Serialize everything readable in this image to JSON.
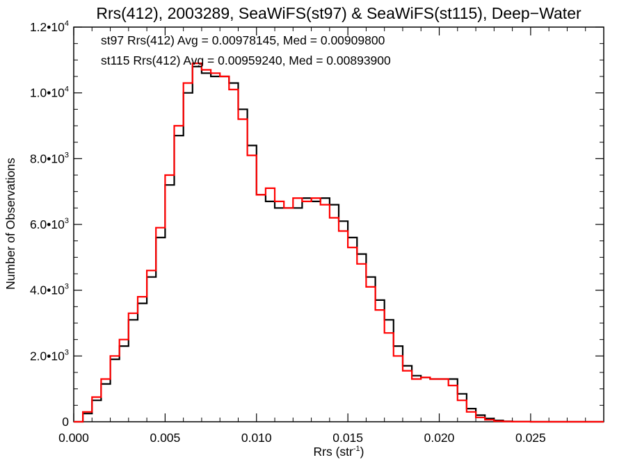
{
  "chart_data": {
    "type": "line",
    "title": "Rrs(412), 2003289, SeaWiFS(st97) & SeaWiFS(st115), Deep−Water",
    "xlabel": {
      "main": "Rrs (str",
      "sup": "-1",
      "close": ")"
    },
    "ylabel": "Number of Observations",
    "xlim": [
      0.0,
      0.029
    ],
    "ylim": [
      0,
      12000
    ],
    "x_ticks": [
      {
        "value": 0.0,
        "label": "0.000"
      },
      {
        "value": 0.005,
        "label": "0.005"
      },
      {
        "value": 0.01,
        "label": "0.010"
      },
      {
        "value": 0.015,
        "label": "0.015"
      },
      {
        "value": 0.02,
        "label": "0.020"
      },
      {
        "value": 0.025,
        "label": "0.025"
      }
    ],
    "y_ticks": [
      {
        "value": 0,
        "mantissa": "0",
        "exp": ""
      },
      {
        "value": 2000,
        "mantissa": "2.0•10",
        "exp": "3"
      },
      {
        "value": 4000,
        "mantissa": "4.0•10",
        "exp": "3"
      },
      {
        "value": 6000,
        "mantissa": "6.0•10",
        "exp": "3"
      },
      {
        "value": 8000,
        "mantissa": "8.0•10",
        "exp": "3"
      },
      {
        "value": 10000,
        "mantissa": "1.0•10",
        "exp": "4"
      },
      {
        "value": 12000,
        "mantissa": "1.2•10",
        "exp": "4"
      }
    ],
    "annotations": [
      {
        "text": "st97 Rrs(412) Avg = 0.00978145, Med = 0.00909800",
        "color": "#000000"
      },
      {
        "text": "st115 Rrs(412) Avg = 0.00959240, Med = 0.00893900",
        "color": "#ff0000"
      }
    ],
    "series": [
      {
        "color": "#000000",
        "x": [
          0.0,
          0.0005,
          0.001,
          0.0015,
          0.002,
          0.0025,
          0.003,
          0.0035,
          0.004,
          0.0045,
          0.005,
          0.0055,
          0.006,
          0.0065,
          0.007,
          0.0075,
          0.008,
          0.0085,
          0.009,
          0.0095,
          0.01,
          0.0105,
          0.011,
          0.0115,
          0.012,
          0.0125,
          0.013,
          0.0135,
          0.014,
          0.0145,
          0.015,
          0.0155,
          0.016,
          0.0165,
          0.017,
          0.0175,
          0.018,
          0.0185,
          0.019,
          0.0195,
          0.02,
          0.0205,
          0.021,
          0.0215,
          0.022,
          0.0225,
          0.023,
          0.0235,
          0.024,
          0.025,
          0.026,
          0.027,
          0.028,
          0.029
        ],
        "y": [
          0,
          250,
          650,
          1150,
          1900,
          2300,
          3100,
          3600,
          4400,
          5600,
          7200,
          8700,
          10000,
          10800,
          10600,
          10500,
          10500,
          10300,
          9500,
          8400,
          6900,
          6700,
          6500,
          6500,
          6500,
          6800,
          6700,
          6800,
          6600,
          6100,
          5600,
          5100,
          4400,
          3700,
          3100,
          2300,
          1700,
          1400,
          1350,
          1300,
          1300,
          1300,
          850,
          400,
          200,
          100,
          40,
          15,
          5,
          0,
          0,
          0,
          0,
          0
        ]
      },
      {
        "color": "#ff0000",
        "x": [
          0.0,
          0.0005,
          0.001,
          0.0015,
          0.002,
          0.0025,
          0.003,
          0.0035,
          0.004,
          0.0045,
          0.005,
          0.0055,
          0.006,
          0.0065,
          0.007,
          0.0075,
          0.008,
          0.0085,
          0.009,
          0.0095,
          0.01,
          0.0105,
          0.011,
          0.0115,
          0.012,
          0.0125,
          0.013,
          0.0135,
          0.014,
          0.0145,
          0.015,
          0.0155,
          0.016,
          0.0165,
          0.017,
          0.0175,
          0.018,
          0.0185,
          0.019,
          0.0195,
          0.02,
          0.0205,
          0.021,
          0.0215,
          0.022,
          0.0225,
          0.023,
          0.0235,
          0.024,
          0.025,
          0.026,
          0.027,
          0.028,
          0.029
        ],
        "y": [
          0,
          300,
          750,
          1300,
          2000,
          2500,
          3300,
          3800,
          4600,
          5900,
          7500,
          9000,
          10300,
          10900,
          10700,
          10600,
          10500,
          10100,
          9200,
          8100,
          6900,
          7100,
          6700,
          6500,
          6800,
          6700,
          6800,
          6600,
          6200,
          5800,
          5300,
          4800,
          4100,
          3400,
          2700,
          2000,
          1550,
          1300,
          1350,
          1300,
          1300,
          1100,
          650,
          300,
          130,
          60,
          20,
          8,
          2,
          0,
          0,
          0,
          0,
          0
        ]
      }
    ]
  }
}
